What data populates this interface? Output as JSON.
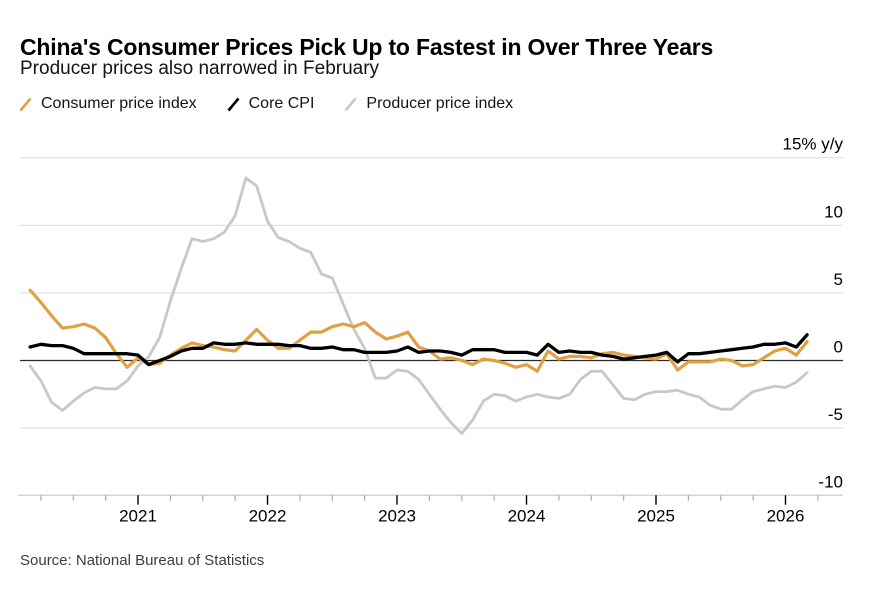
{
  "header": {
    "title": "China's Consumer Prices Pick Up to Fastest in Over Three Years",
    "subtitle": "Producer prices also narrowed in February"
  },
  "legend": {
    "items": [
      {
        "label": "Consumer price index",
        "color": "#E0A142"
      },
      {
        "label": "Core CPI",
        "color": "#000000"
      },
      {
        "label": "Producer price index",
        "color": "#C8C8C8"
      }
    ]
  },
  "chart_data": {
    "type": "line",
    "title": "China's Consumer Prices Pick Up to Fastest in Over Three Years",
    "subtitle": "Producer prices also narrowed in February",
    "unit": "% y/y",
    "frequency": "monthly",
    "x_start": "2020-02",
    "x_end": "2026-02",
    "ylim": [
      -10,
      15
    ],
    "grid": "horizontal",
    "legend_position": "top-left",
    "x_tick_labels": [
      "2021",
      "2022",
      "2023",
      "2024",
      "2025",
      "2026"
    ],
    "y_ticks": [
      {
        "value": 15,
        "label": "15% y/y"
      },
      {
        "value": 10,
        "label": "10"
      },
      {
        "value": 5,
        "label": "5"
      },
      {
        "value": 0,
        "label": "0"
      },
      {
        "value": -5,
        "label": "-5"
      },
      {
        "value": -10,
        "label": "-10"
      }
    ],
    "draw_order": [
      2,
      0,
      1
    ],
    "series": [
      {
        "name": "Consumer price index",
        "color": "#E0A142",
        "stroke_width": 3.2,
        "values": [
          5.2,
          4.3,
          3.3,
          2.4,
          2.5,
          2.7,
          2.4,
          1.7,
          0.5,
          -0.5,
          0.2,
          -0.3,
          -0.2,
          0.4,
          0.9,
          1.3,
          1.1,
          1.0,
          0.8,
          0.7,
          1.5,
          2.3,
          1.5,
          0.9,
          0.9,
          1.5,
          2.1,
          2.1,
          2.5,
          2.7,
          2.5,
          2.8,
          2.1,
          1.6,
          1.8,
          2.1,
          1.0,
          0.7,
          0.1,
          0.2,
          0.0,
          -0.3,
          0.1,
          0.0,
          -0.2,
          -0.5,
          -0.3,
          -0.8,
          0.7,
          0.1,
          0.3,
          0.3,
          0.2,
          0.5,
          0.6,
          0.4,
          0.3,
          0.2,
          0.1,
          0.5,
          -0.7,
          -0.1,
          -0.1,
          -0.1,
          0.1,
          0.0,
          -0.4,
          -0.3,
          0.2,
          0.7,
          0.9,
          0.4,
          1.4
        ]
      },
      {
        "name": "Core CPI",
        "color": "#000000",
        "stroke_width": 3.3,
        "values": [
          1.0,
          1.2,
          1.1,
          1.1,
          0.9,
          0.5,
          0.5,
          0.5,
          0.5,
          0.5,
          0.4,
          -0.3,
          0.0,
          0.3,
          0.7,
          0.9,
          0.9,
          1.3,
          1.2,
          1.2,
          1.3,
          1.2,
          1.2,
          1.2,
          1.1,
          1.1,
          0.9,
          0.9,
          1.0,
          0.8,
          0.8,
          0.6,
          0.6,
          0.6,
          0.7,
          1.0,
          0.6,
          0.7,
          0.7,
          0.6,
          0.4,
          0.8,
          0.8,
          0.8,
          0.6,
          0.6,
          0.6,
          0.4,
          1.2,
          0.6,
          0.7,
          0.6,
          0.6,
          0.4,
          0.3,
          0.1,
          0.2,
          0.3,
          0.4,
          0.6,
          -0.1,
          0.5,
          0.5,
          0.6,
          0.7,
          0.8,
          0.9,
          1.0,
          1.2,
          1.2,
          1.3,
          1.0,
          1.9
        ]
      },
      {
        "name": "Producer price index",
        "color": "#C8C8C8",
        "stroke_width": 2.8,
        "values": [
          -0.4,
          -1.5,
          -3.1,
          -3.7,
          -3.0,
          -2.4,
          -2.0,
          -2.1,
          -2.1,
          -1.5,
          -0.4,
          0.3,
          1.7,
          4.4,
          6.8,
          9.0,
          8.8,
          9.0,
          9.5,
          10.7,
          13.5,
          12.9,
          10.3,
          9.1,
          8.8,
          8.3,
          8.0,
          6.4,
          6.1,
          4.2,
          2.3,
          0.9,
          -1.3,
          -1.3,
          -0.7,
          -0.8,
          -1.4,
          -2.5,
          -3.6,
          -4.6,
          -5.4,
          -4.4,
          -3.0,
          -2.5,
          -2.6,
          -3.0,
          -2.7,
          -2.5,
          -2.7,
          -2.8,
          -2.5,
          -1.4,
          -0.8,
          -0.8,
          -1.8,
          -2.8,
          -2.9,
          -2.5,
          -2.3,
          -2.3,
          -2.2,
          -2.5,
          -2.7,
          -3.3,
          -3.6,
          -3.6,
          -2.9,
          -2.3,
          -2.1,
          -1.9,
          -2.0,
          -1.6,
          -0.9
        ]
      }
    ]
  },
  "footer": {
    "source": "Source: National Bureau of Statistics"
  }
}
